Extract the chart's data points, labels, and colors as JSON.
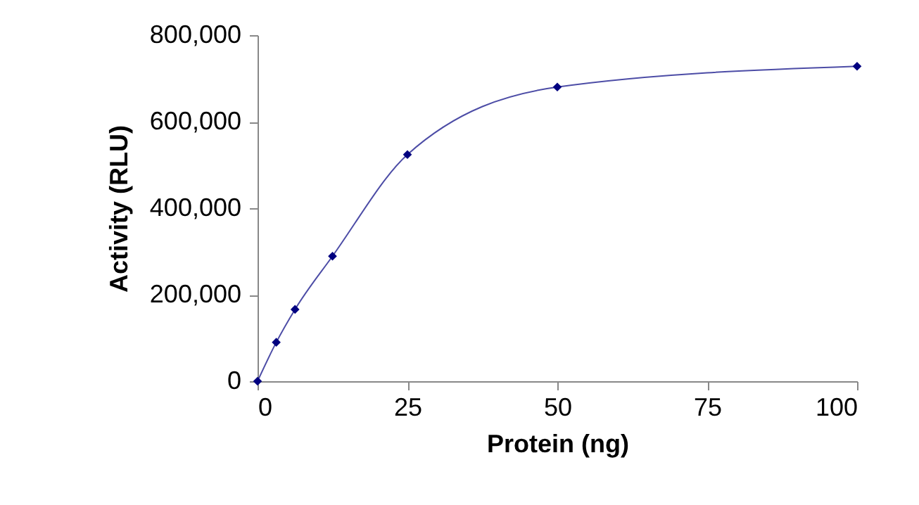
{
  "chart_data": {
    "type": "line",
    "xlabel": "Protein (ng)",
    "ylabel": "Activity (RLU)",
    "x": [
      0,
      3.125,
      6.25,
      12.5,
      25,
      50,
      100
    ],
    "series": [
      {
        "color": "#000080",
        "values": [
          0,
          90000,
          166000,
          289000,
          524000,
          680000,
          728000
        ]
      }
    ],
    "xlim": [
      0,
      100
    ],
    "xticks": [
      0,
      25,
      50,
      75,
      100
    ],
    "ylim": [
      0,
      800000
    ],
    "yticks": [
      0,
      {
        "value": 200000,
        "label": "200,000"
      },
      {
        "value": 400000,
        "label": "400,000"
      },
      {
        "value": 600000,
        "label": "600,000"
      },
      {
        "value": 800000,
        "label": "800,000"
      }
    ],
    "grid": false,
    "legend": false,
    "marker": "diamond",
    "line_style": "solid"
  }
}
